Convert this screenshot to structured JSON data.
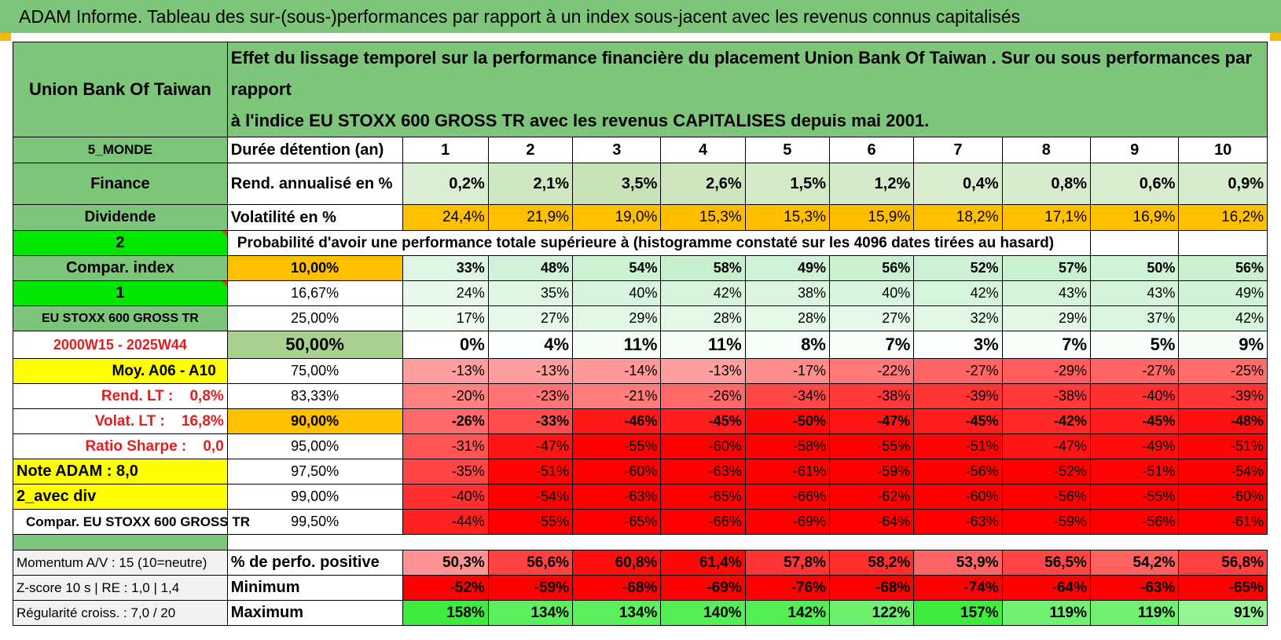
{
  "title": "ADAM Informe. Tableau des sur-(sous-)performances par rapport à un index sous-jacent avec les revenus connus capitalisés",
  "header": {
    "asset_name": "Union Bank Of Taiwan",
    "description_line1": "Effet du lissage temporel sur la performance financière du placement Union Bank Of Taiwan . Sur ou sous performances par rapport",
    "description_line2": "à l'indice EU STOXX 600 GROSS TR avec les revenus CAPITALISES depuis mai 2001."
  },
  "durations": {
    "left_label": "5_MONDE",
    "row_label": "Durée détention (an)",
    "values": [
      "1",
      "2",
      "3",
      "4",
      "5",
      "6",
      "7",
      "8",
      "9",
      "10"
    ]
  },
  "annual_return": {
    "left_label": "Finance",
    "row_label": "Rend. annualisé en %",
    "values": [
      "0,2%",
      "2,1%",
      "3,5%",
      "2,6%",
      "1,5%",
      "1,2%",
      "0,4%",
      "0,8%",
      "0,6%",
      "0,9%"
    ]
  },
  "volatility": {
    "left_label": "Dividende",
    "row_label": "Volatilité en %",
    "values": [
      "24,4%",
      "21,9%",
      "19,0%",
      "15,3%",
      "15,3%",
      "15,9%",
      "18,2%",
      "17,1%",
      "16,9%",
      "16,2%"
    ]
  },
  "probability": {
    "left_label": "2",
    "heading": "Probabilité d'avoir une performance totale supérieure à (histogramme constaté sur les 4096 dates tirées au hasard)",
    "rows": [
      {
        "left": "Compar. index",
        "threshold": "10,00%",
        "values": [
          "33%",
          "48%",
          "54%",
          "58%",
          "49%",
          "56%",
          "52%",
          "57%",
          "50%",
          "56%"
        ]
      },
      {
        "left": "1",
        "threshold": "16,67%",
        "values": [
          "24%",
          "35%",
          "40%",
          "42%",
          "38%",
          "40%",
          "42%",
          "43%",
          "43%",
          "49%"
        ]
      },
      {
        "left": "EU STOXX 600 GROSS TR",
        "threshold": "25,00%",
        "values": [
          "17%",
          "27%",
          "29%",
          "28%",
          "28%",
          "27%",
          "32%",
          "29%",
          "37%",
          "42%"
        ]
      },
      {
        "left": "2000W15 - 2025W44",
        "threshold": "50,00%",
        "values": [
          "0%",
          "4%",
          "11%",
          "11%",
          "8%",
          "7%",
          "3%",
          "7%",
          "5%",
          "9%"
        ]
      },
      {
        "left": "Moy. A06 - A10",
        "threshold": "75,00%",
        "values": [
          "-13%",
          "-13%",
          "-14%",
          "-13%",
          "-17%",
          "-22%",
          "-27%",
          "-29%",
          "-27%",
          "-25%"
        ]
      },
      {
        "left": "Rend. LT :    0,8%",
        "threshold": "83,33%",
        "values": [
          "-20%",
          "-23%",
          "-21%",
          "-26%",
          "-34%",
          "-38%",
          "-39%",
          "-38%",
          "-40%",
          "-39%"
        ]
      },
      {
        "left": "Volat. LT :    16,8%",
        "threshold": "90,00%",
        "values": [
          "-26%",
          "-33%",
          "-46%",
          "-45%",
          "-50%",
          "-47%",
          "-45%",
          "-42%",
          "-45%",
          "-48%"
        ]
      },
      {
        "left": "Ratio Sharpe :    0,0",
        "threshold": "95,00%",
        "values": [
          "-31%",
          "-47%",
          "-55%",
          "-60%",
          "-58%",
          "-55%",
          "-51%",
          "-47%",
          "-49%",
          "-51%"
        ]
      },
      {
        "left": "Note ADAM : 8,0",
        "threshold": "97,50%",
        "values": [
          "-35%",
          "-51%",
          "-60%",
          "-63%",
          "-61%",
          "-59%",
          "-56%",
          "-52%",
          "-51%",
          "-54%"
        ]
      },
      {
        "left": "2_avec div",
        "threshold": "99,00%",
        "values": [
          "-40%",
          "-54%",
          "-63%",
          "-65%",
          "-66%",
          "-62%",
          "-60%",
          "-56%",
          "-55%",
          "-60%"
        ]
      },
      {
        "left": "Compar. EU STOXX 600 GROSS TR",
        "threshold": "99,50%",
        "values": [
          "-44%",
          "-55%",
          "-65%",
          "-66%",
          "-69%",
          "-64%",
          "-63%",
          "-59%",
          "-56%",
          "-61%"
        ]
      }
    ]
  },
  "stats": [
    {
      "left": "Momentum A/V : 15 (10=neutre)",
      "label": "% de perfo. positive",
      "values": [
        "50,3%",
        "56,6%",
        "60,8%",
        "61,4%",
        "57,8%",
        "58,2%",
        "53,9%",
        "56,5%",
        "54,2%",
        "56,8%"
      ]
    },
    {
      "left": "Z-score 10 s | RE : 1,0 | 1,4",
      "label": "Minimum",
      "values": [
        "-52%",
        "-59%",
        "-68%",
        "-69%",
        "-76%",
        "-68%",
        "-74%",
        "-64%",
        "-63%",
        "-65%"
      ]
    },
    {
      "left": "Régularité croiss. : 7,0 / 20",
      "label": "Maximum",
      "values": [
        "158%",
        "134%",
        "134%",
        "140%",
        "142%",
        "122%",
        "157%",
        "119%",
        "119%",
        "91%"
      ]
    }
  ],
  "colors": {
    "header_green": "#7dc57b",
    "bright_green": "#00e600",
    "yellow": "#ffff00",
    "orange": "#ffc000",
    "red_text": "#e0201f",
    "return_bg": "#c6e0b4",
    "positive_max": "#66ee66"
  }
}
